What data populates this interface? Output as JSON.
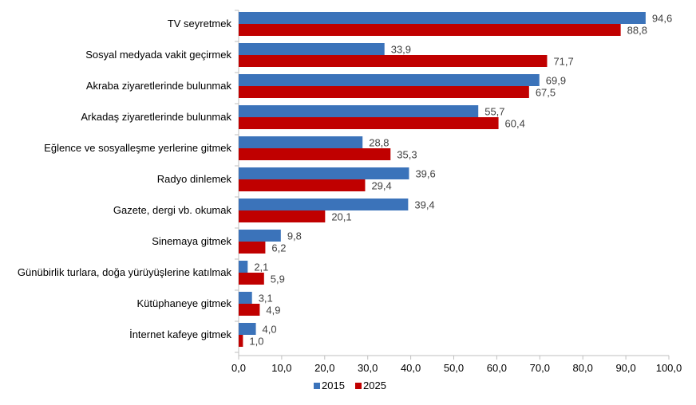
{
  "chart_data": {
    "type": "bar",
    "orientation": "horizontal",
    "categories": [
      "TV seyretmek",
      "Sosyal medyada vakit geçirmek",
      "Akraba ziyaretlerinde bulunmak",
      "Arkadaş ziyaretlerinde bulunmak",
      "Eğlence ve sosyalleşme yerlerine gitmek",
      "Radyo dinlemek",
      "Gazete, dergi vb. okumak",
      "Sinemaya gitmek",
      "Günübirlik turlara, doğa yürüyüşlerine katılmak",
      "Kütüphaneye gitmek",
      "İnternet kafeye gitmek"
    ],
    "series": [
      {
        "name": "2015",
        "color": "#3B73BA",
        "values": [
          94.6,
          33.9,
          69.9,
          55.7,
          28.8,
          39.6,
          39.4,
          9.8,
          2.1,
          3.1,
          4.0
        ],
        "labels": [
          "94,6",
          "33,9",
          "69,9",
          "55,7",
          "28,8",
          "39,6",
          "39,4",
          "9,8",
          "2,1",
          "3,1",
          "4,0"
        ]
      },
      {
        "name": "2025",
        "color": "#C00000",
        "values": [
          88.8,
          71.7,
          67.5,
          60.4,
          35.3,
          29.4,
          20.1,
          6.2,
          5.9,
          4.9,
          1.0
        ],
        "labels": [
          "88,8",
          "71,7",
          "67,5",
          "60,4",
          "35,3",
          "29,4",
          "20,1",
          "6,2",
          "5,9",
          "4,9",
          "1,0"
        ]
      }
    ],
    "xlim": [
      0,
      100
    ],
    "xticks": [
      0,
      10,
      20,
      30,
      40,
      50,
      60,
      70,
      80,
      90,
      100
    ],
    "xtick_labels": [
      "0,0",
      "10,0",
      "20,0",
      "30,0",
      "40,0",
      "50,0",
      "60,0",
      "70,0",
      "80,0",
      "90,0",
      "100,0"
    ],
    "grid": false,
    "legend": "bottom",
    "title": "",
    "xlabel": "",
    "ylabel": ""
  }
}
